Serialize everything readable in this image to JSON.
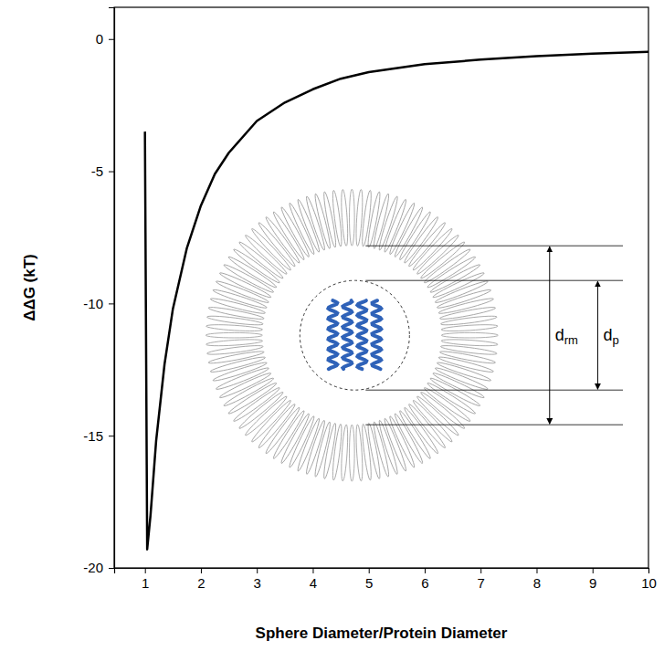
{
  "chart_data": {
    "type": "line",
    "x_label": "Sphere Diameter/Protein Diameter",
    "y_label": "ΔΔG (kT)",
    "x": [
      1,
      1.04,
      1.1,
      1.2,
      1.35,
      1.5,
      1.75,
      2,
      2.25,
      2.5,
      3,
      3.5,
      4,
      4.5,
      5,
      6,
      7,
      8,
      9,
      10
    ],
    "values": [
      -3.5,
      -19.3,
      -18.0,
      -15.2,
      -12.3,
      -10.2,
      -7.9,
      -6.3,
      -5.1,
      -4.3,
      -3.1,
      -2.4,
      -1.9,
      -1.5,
      -1.25,
      -0.95,
      -0.78,
      -0.65,
      -0.55,
      -0.48
    ],
    "color": "#000000",
    "xlim": [
      0.45,
      10
    ],
    "ylim": [
      -20,
      1.2
    ],
    "xticks": [
      1,
      2,
      3,
      4,
      5,
      6,
      7,
      8,
      9,
      10
    ],
    "yticks": [
      0,
      -5,
      -10,
      -15,
      -20
    ],
    "annotations": [
      {
        "base": "d",
        "sub": "rm"
      },
      {
        "base": "d",
        "sub": "p"
      }
    ]
  }
}
